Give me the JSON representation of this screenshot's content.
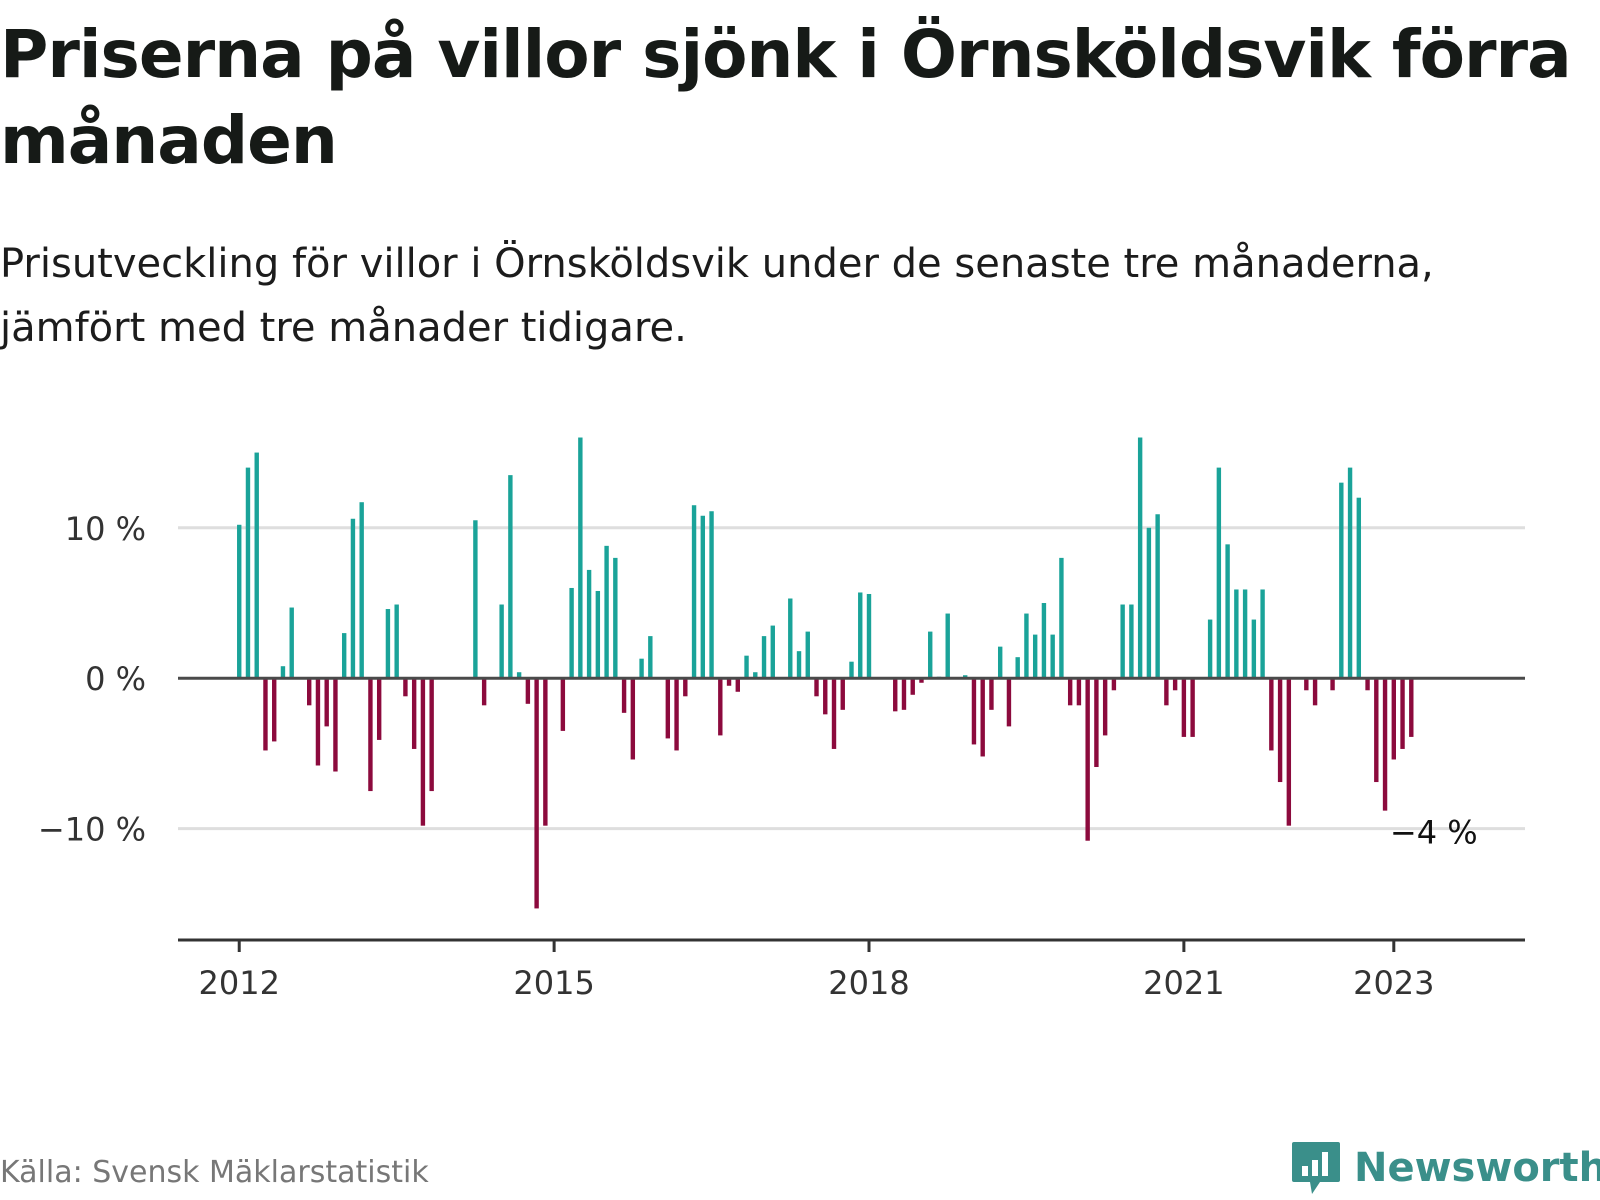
{
  "header": {
    "title": "Priserna på villor sjönk i Örnsköldsvik förra månaden",
    "subtitle": "Prisutveckling för villor i Örnsköldsvik under de senaste tre månaderna, jämfört med tre månader tidigare."
  },
  "footer": {
    "source": "Källa: Svensk Mäklarstatistik",
    "brand": "Newsworthy",
    "brand_icon": "newsworthy-logo-icon"
  },
  "colors": {
    "positive": "#1aa399",
    "negative": "#8c0a3d",
    "grid": "#dedede",
    "axis": "#333333",
    "brand": "#3a8f8a"
  },
  "chart_data": {
    "type": "bar",
    "title": "",
    "xlabel": "",
    "ylabel": "",
    "ylim": [
      -17,
      16.5
    ],
    "y_ticks": [
      {
        "value": 10,
        "label": "10 %"
      },
      {
        "value": 0,
        "label": "0 %"
      },
      {
        "value": -10,
        "label": "−10 %"
      }
    ],
    "x_ticks": [
      {
        "date": "2012-01",
        "label": "2012"
      },
      {
        "date": "2015-01",
        "label": "2015"
      },
      {
        "date": "2018-01",
        "label": "2018"
      },
      {
        "date": "2021-01",
        "label": "2021"
      },
      {
        "date": "2023-01",
        "label": "2023"
      }
    ],
    "x_range": [
      "2011-06",
      "2024-04"
    ],
    "grid": true,
    "annotation": {
      "label": "−4 %",
      "date": "2023-01",
      "value": -4
    },
    "series": [
      {
        "points": [
          {
            "x": "2012-01",
            "y": 10.2
          },
          {
            "x": "2012-02",
            "y": 14
          },
          {
            "x": "2012-03",
            "y": 15
          },
          {
            "x": "2012-04",
            "y": -4.8
          },
          {
            "x": "2012-05",
            "y": -4.2
          },
          {
            "x": "2012-06",
            "y": 0.8
          },
          {
            "x": "2012-07",
            "y": 4.7
          },
          {
            "x": "2012-08",
            "y": 0
          },
          {
            "x": "2012-09",
            "y": -1.8
          },
          {
            "x": "2012-10",
            "y": -5.8
          },
          {
            "x": "2012-11",
            "y": -3.2
          },
          {
            "x": "2012-12",
            "y": -6.2
          },
          {
            "x": "2013-01",
            "y": 3
          },
          {
            "x": "2013-02",
            "y": 10.6
          },
          {
            "x": "2013-03",
            "y": 11.7
          },
          {
            "x": "2013-04",
            "y": -7.5
          },
          {
            "x": "2013-05",
            "y": -4.1
          },
          {
            "x": "2013-06",
            "y": 4.6
          },
          {
            "x": "2013-07",
            "y": 4.9
          },
          {
            "x": "2013-08",
            "y": -1.2
          },
          {
            "x": "2013-09",
            "y": -4.7
          },
          {
            "x": "2013-10",
            "y": -9.8
          },
          {
            "x": "2013-11",
            "y": -7.5
          },
          {
            "x": "2013-12",
            "y": 0
          },
          {
            "x": "2014-01",
            "y": 0
          },
          {
            "x": "2014-02",
            "y": 0
          },
          {
            "x": "2014-03",
            "y": 0
          },
          {
            "x": "2014-04",
            "y": 10.5
          },
          {
            "x": "2014-05",
            "y": -1.8
          },
          {
            "x": "2014-06",
            "y": 0
          },
          {
            "x": "2014-07",
            "y": 4.9
          },
          {
            "x": "2014-08",
            "y": 13.5
          },
          {
            "x": "2014-09",
            "y": 0.4
          },
          {
            "x": "2014-10",
            "y": -1.7
          },
          {
            "x": "2014-11",
            "y": -15.3
          },
          {
            "x": "2014-12",
            "y": -9.8
          },
          {
            "x": "2015-01",
            "y": 0
          },
          {
            "x": "2015-02",
            "y": -3.5
          },
          {
            "x": "2015-03",
            "y": 6
          },
          {
            "x": "2015-04",
            "y": 16
          },
          {
            "x": "2015-05",
            "y": 7.2
          },
          {
            "x": "2015-06",
            "y": 5.8
          },
          {
            "x": "2015-07",
            "y": 8.8
          },
          {
            "x": "2015-08",
            "y": 8
          },
          {
            "x": "2015-09",
            "y": -2.3
          },
          {
            "x": "2015-10",
            "y": -5.4
          },
          {
            "x": "2015-11",
            "y": 1.3
          },
          {
            "x": "2015-12",
            "y": 2.8
          },
          {
            "x": "2016-01",
            "y": 0
          },
          {
            "x": "2016-02",
            "y": -4
          },
          {
            "x": "2016-03",
            "y": -4.8
          },
          {
            "x": "2016-04",
            "y": -1.2
          },
          {
            "x": "2016-05",
            "y": 11.5
          },
          {
            "x": "2016-06",
            "y": 10.8
          },
          {
            "x": "2016-07",
            "y": 11.1
          },
          {
            "x": "2016-08",
            "y": -3.8
          },
          {
            "x": "2016-09",
            "y": -0.5
          },
          {
            "x": "2016-10",
            "y": -0.9
          },
          {
            "x": "2016-11",
            "y": 1.5
          },
          {
            "x": "2016-12",
            "y": 0.4
          },
          {
            "x": "2017-01",
            "y": 2.8
          },
          {
            "x": "2017-02",
            "y": 3.5
          },
          {
            "x": "2017-03",
            "y": 0
          },
          {
            "x": "2017-04",
            "y": 5.3
          },
          {
            "x": "2017-05",
            "y": 1.8
          },
          {
            "x": "2017-06",
            "y": 3.1
          },
          {
            "x": "2017-07",
            "y": -1.2
          },
          {
            "x": "2017-08",
            "y": -2.4
          },
          {
            "x": "2017-09",
            "y": -4.7
          },
          {
            "x": "2017-10",
            "y": -2.1
          },
          {
            "x": "2017-11",
            "y": 1.1
          },
          {
            "x": "2017-12",
            "y": 5.7
          },
          {
            "x": "2018-01",
            "y": 5.6
          },
          {
            "x": "2018-02",
            "y": 0
          },
          {
            "x": "2018-03",
            "y": 0
          },
          {
            "x": "2018-04",
            "y": -2.2
          },
          {
            "x": "2018-05",
            "y": -2.1
          },
          {
            "x": "2018-06",
            "y": -1.1
          },
          {
            "x": "2018-07",
            "y": -0.3
          },
          {
            "x": "2018-08",
            "y": 3.1
          },
          {
            "x": "2018-09",
            "y": 0.1
          },
          {
            "x": "2018-10",
            "y": 4.3
          },
          {
            "x": "2018-11",
            "y": 0
          },
          {
            "x": "2018-12",
            "y": 0.2
          },
          {
            "x": "2019-01",
            "y": -4.4
          },
          {
            "x": "2019-02",
            "y": -5.2
          },
          {
            "x": "2019-03",
            "y": -2.1
          },
          {
            "x": "2019-04",
            "y": 2.1
          },
          {
            "x": "2019-05",
            "y": -3.2
          },
          {
            "x": "2019-06",
            "y": 1.4
          },
          {
            "x": "2019-07",
            "y": 4.3
          },
          {
            "x": "2019-08",
            "y": 2.9
          },
          {
            "x": "2019-09",
            "y": 5
          },
          {
            "x": "2019-10",
            "y": 2.9
          },
          {
            "x": "2019-11",
            "y": 8
          },
          {
            "x": "2019-12",
            "y": -1.8
          },
          {
            "x": "2020-01",
            "y": -1.8
          },
          {
            "x": "2020-02",
            "y": -10.8
          },
          {
            "x": "2020-03",
            "y": -5.9
          },
          {
            "x": "2020-04",
            "y": -3.8
          },
          {
            "x": "2020-05",
            "y": -0.8
          },
          {
            "x": "2020-06",
            "y": 4.9
          },
          {
            "x": "2020-07",
            "y": 4.9
          },
          {
            "x": "2020-08",
            "y": 16
          },
          {
            "x": "2020-09",
            "y": 10
          },
          {
            "x": "2020-10",
            "y": 10.9
          },
          {
            "x": "2020-11",
            "y": -1.8
          },
          {
            "x": "2020-12",
            "y": -0.8
          },
          {
            "x": "2021-01",
            "y": -3.9
          },
          {
            "x": "2021-02",
            "y": -3.9
          },
          {
            "x": "2021-03",
            "y": 0
          },
          {
            "x": "2021-04",
            "y": 3.9
          },
          {
            "x": "2021-05",
            "y": 14
          },
          {
            "x": "2021-06",
            "y": 8.9
          },
          {
            "x": "2021-07",
            "y": 5.9
          },
          {
            "x": "2021-08",
            "y": 5.9
          },
          {
            "x": "2021-09",
            "y": 3.9
          },
          {
            "x": "2021-10",
            "y": 5.9
          },
          {
            "x": "2021-11",
            "y": -4.8
          },
          {
            "x": "2021-12",
            "y": -6.9
          },
          {
            "x": "2022-01",
            "y": -9.8
          },
          {
            "x": "2022-02",
            "y": 0
          },
          {
            "x": "2022-03",
            "y": -0.8
          },
          {
            "x": "2022-04",
            "y": -1.8
          },
          {
            "x": "2022-05",
            "y": 0
          },
          {
            "x": "2022-06",
            "y": -0.8
          },
          {
            "x": "2022-07",
            "y": 13
          },
          {
            "x": "2022-08",
            "y": 14
          },
          {
            "x": "2022-09",
            "y": 12
          },
          {
            "x": "2022-10",
            "y": -0.8
          },
          {
            "x": "2022-11",
            "y": -6.9
          },
          {
            "x": "2022-12",
            "y": -8.8
          },
          {
            "x": "2023-01",
            "y": -5.4
          },
          {
            "x": "2023-02",
            "y": -4.7
          },
          {
            "x": "2023-03",
            "y": -3.9
          }
        ]
      }
    ]
  }
}
